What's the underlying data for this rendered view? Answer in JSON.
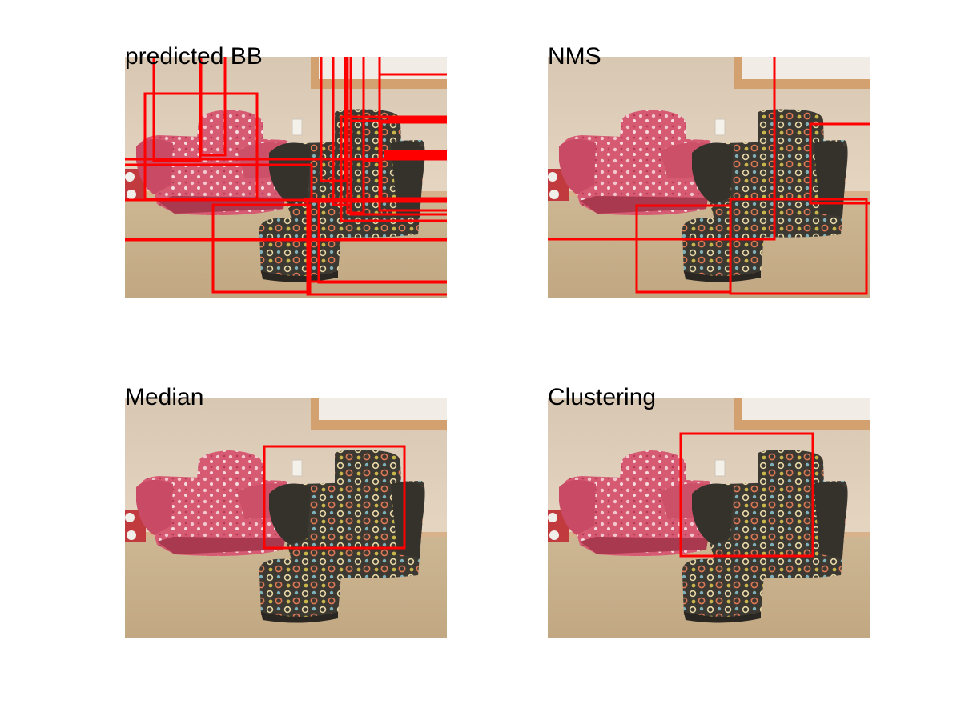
{
  "panels": [
    {
      "title": "predicted BB"
    },
    {
      "title": "NMS"
    },
    {
      "title": "Median"
    },
    {
      "title": "Clustering"
    }
  ],
  "colors": {
    "box": "#ff0000",
    "wall": "#e2d2bd",
    "carpet": "#c8b08c",
    "pink_chair": "#d9566f",
    "dark_chair": "#3e3a33",
    "window_frame": "#d2a478"
  }
}
